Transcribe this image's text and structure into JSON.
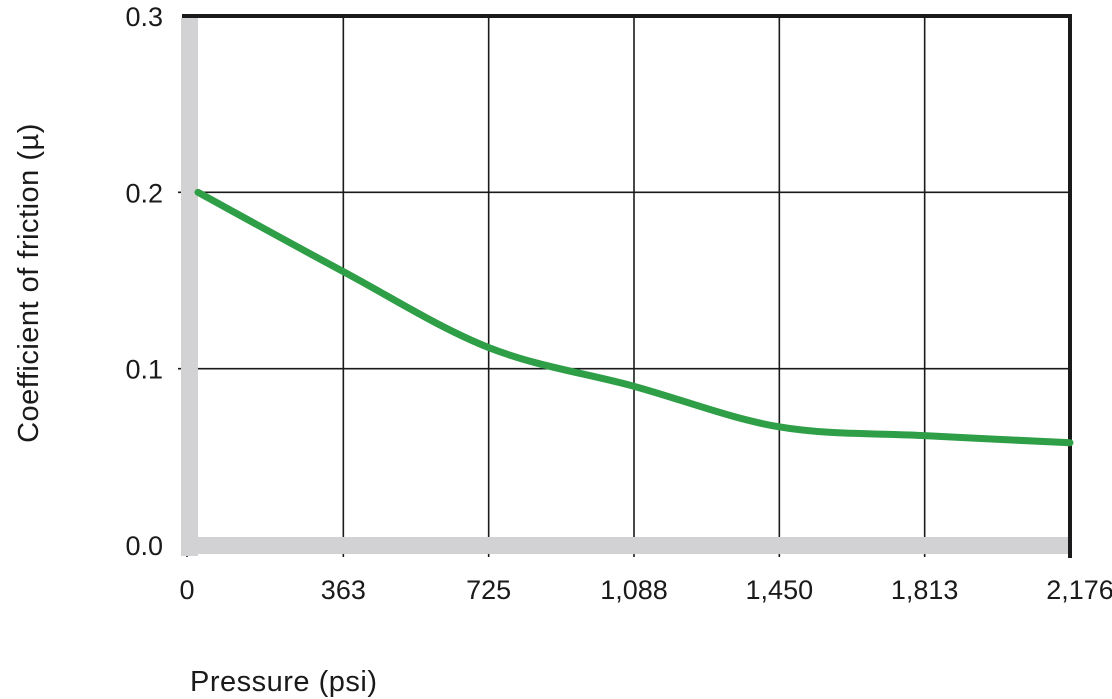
{
  "chart_data": {
    "type": "line",
    "title": "",
    "xlabel": "Pressure (psi)",
    "ylabel": "Coefficient of friction (µ)",
    "x_ticks": [
      "0",
      "363",
      "725",
      "1,088",
      "1,450",
      "1,813",
      "2,176"
    ],
    "y_ticks": [
      "0.0",
      "0.1",
      "0.2",
      "0.3"
    ],
    "xlim": [
      0,
      2176
    ],
    "ylim": [
      0,
      0.3
    ],
    "grid": true,
    "legend": null,
    "series": [
      {
        "name": "Coefficient of friction",
        "color": "#2e9e47",
        "x": [
          0,
          363,
          725,
          1088,
          1450,
          1813,
          2176
        ],
        "y": [
          0.2,
          0.155,
          0.112,
          0.09,
          0.067,
          0.062,
          0.058
        ]
      }
    ]
  },
  "colors": {
    "line": "#2e9e47",
    "axis_bar": "#d2d2d4",
    "grid": "#1a1a1a",
    "text": "#1a1a1a"
  }
}
